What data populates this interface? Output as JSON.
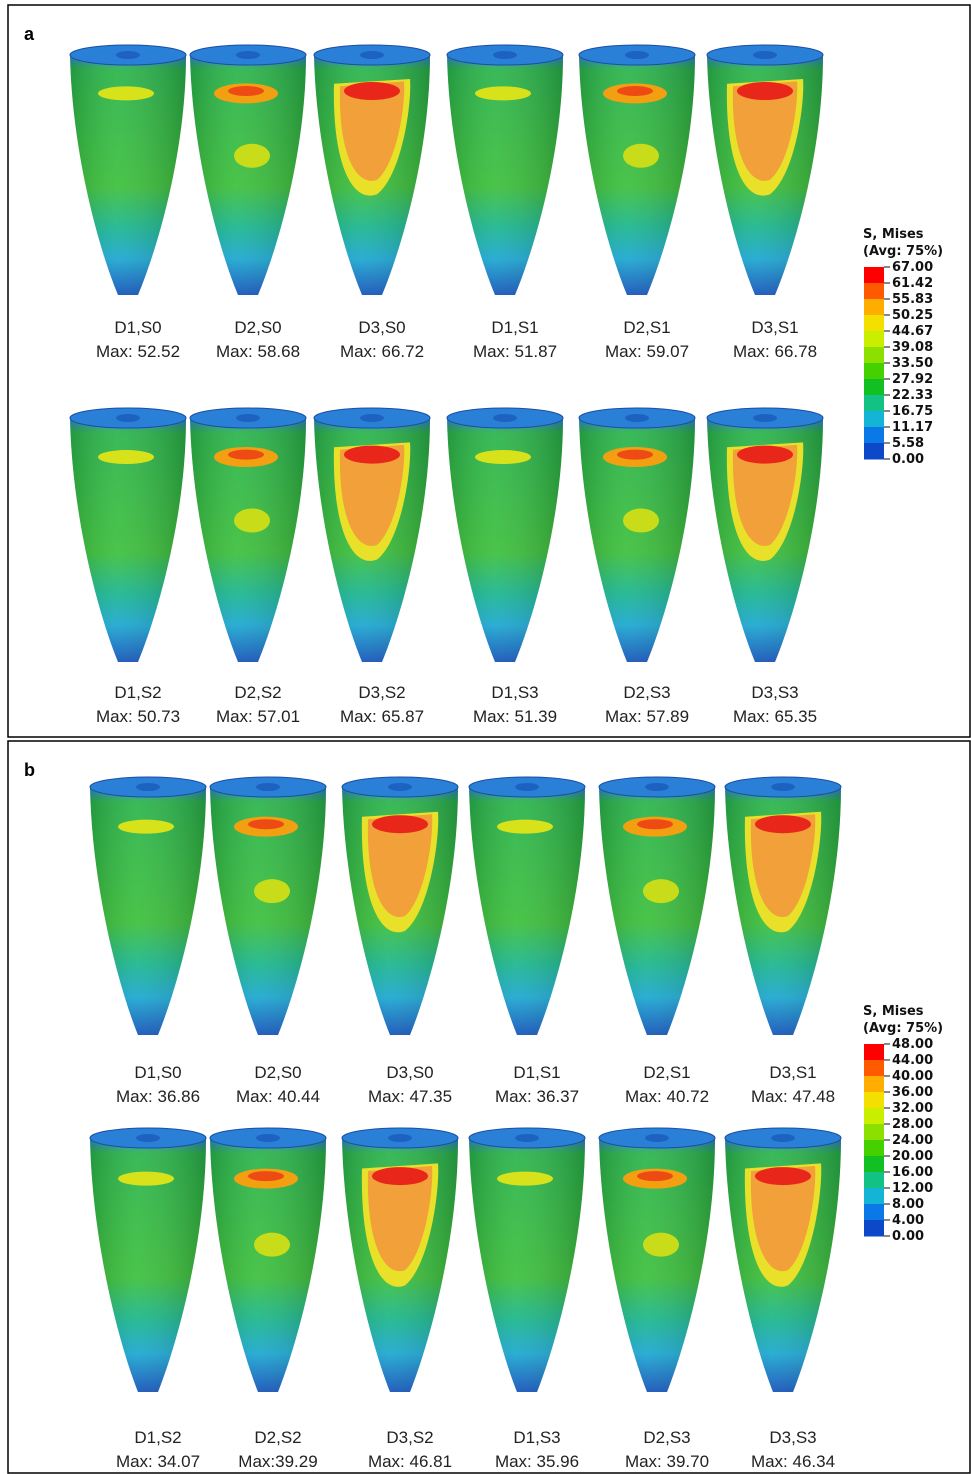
{
  "panels": [
    {
      "label": "a",
      "rows": [
        [
          {
            "name": "D1,S0",
            "max": "Max: 52.52"
          },
          {
            "name": "D2,S0",
            "max": "Max: 58.68"
          },
          {
            "name": "D3,S0",
            "max": "Max: 66.72"
          },
          {
            "name": "D1,S1",
            "max": "Max: 51.87"
          },
          {
            "name": "D2,S1",
            "max": "Max: 59.07"
          },
          {
            "name": "D3,S1",
            "max": "Max: 66.78"
          }
        ],
        [
          {
            "name": "D1,S2",
            "max": "Max: 50.73"
          },
          {
            "name": "D2,S2",
            "max": "Max: 57.01"
          },
          {
            "name": "D3,S2",
            "max": "Max: 65.87"
          },
          {
            "name": "D1,S3",
            "max": "Max: 51.39"
          },
          {
            "name": "D2,S3",
            "max": "Max: 57.89"
          },
          {
            "name": "D3,S3",
            "max": "Max: 65.35"
          }
        ]
      ],
      "legend": {
        "title": "S, Mises",
        "subtitle": "(Avg: 75%)",
        "ticks": [
          "67.00",
          "61.42",
          "55.83",
          "50.25",
          "44.67",
          "39.08",
          "33.50",
          "27.92",
          "22.33",
          "16.75",
          "11.17",
          "5.58",
          "0.00"
        ]
      }
    },
    {
      "label": "b",
      "rows": [
        [
          {
            "name": "D1,S0",
            "max": "Max: 36.86"
          },
          {
            "name": "D2,S0",
            "max": "Max: 40.44"
          },
          {
            "name": "D3,S0",
            "max": "Max: 47.35"
          },
          {
            "name": "D1,S1",
            "max": "Max: 36.37"
          },
          {
            "name": "D2,S1",
            "max": "Max: 40.72"
          },
          {
            "name": "D3,S1",
            "max": "Max: 47.48"
          }
        ],
        [
          {
            "name": "D1,S2",
            "max": "Max: 34.07"
          },
          {
            "name": "D2,S2",
            "max": "Max:39.29"
          },
          {
            "name": "D3,S2",
            "max": "Max: 46.81"
          },
          {
            "name": "D1,S3",
            "max": "Max: 35.96"
          },
          {
            "name": "D2,S3",
            "max": "Max: 39.70"
          },
          {
            "name": "D3,S3",
            "max": "Max: 46.34"
          }
        ]
      ],
      "legend": {
        "title": "S, Mises",
        "subtitle": "(Avg: 75%)",
        "ticks": [
          "48.00",
          "44.00",
          "40.00",
          "36.00",
          "32.00",
          "28.00",
          "24.00",
          "20.00",
          "16.00",
          "12.00",
          "8.00",
          "4.00",
          "0.00"
        ]
      }
    }
  ]
}
